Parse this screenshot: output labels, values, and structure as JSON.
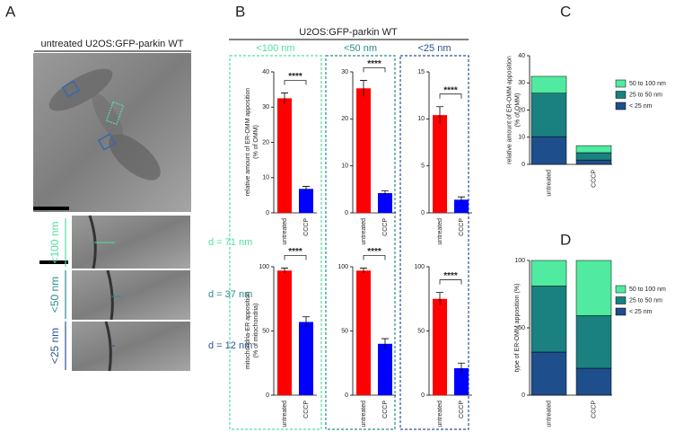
{
  "panel_a": {
    "label": "A",
    "title": "untreated U2OS:GFP-parkin WT",
    "rows": [
      {
        "range": "<100 nm",
        "distance": "d = 71 nm",
        "color": "#4fe0a0"
      },
      {
        "range": "<50 nm",
        "distance": "d = 37 nm",
        "color": "#2a8a8e"
      },
      {
        "range": "<25 nm",
        "distance": "d = 12 nm",
        "color": "#2a5490"
      }
    ]
  },
  "panel_b": {
    "label": "B",
    "title": "U2OS:GFP-parkin WT",
    "columns": [
      "<100 nm",
      "<50 nm",
      "<25 nm"
    ],
    "column_colors": [
      "#4fe0a0",
      "#2a8a8e",
      "#2a5490"
    ],
    "row_labels": [
      [
        "relative amount of ER-OMM apposition",
        "(% of OMM)"
      ],
      [
        "mitochondria-ER apposition",
        "(% of mitochondria)"
      ]
    ]
  },
  "panel_c": {
    "label": "C",
    "ylabel": [
      "relative amount of ER-OMM apposition",
      "(% of OMM)"
    ]
  },
  "panel_d": {
    "label": "D",
    "ylabel": [
      "type of ER-OMM apposition (%)"
    ]
  },
  "chart_data": [
    {
      "type": "bar",
      "categories": [
        "untreated",
        "CCCP"
      ],
      "values": [
        32.5,
        6.8
      ],
      "errors": [
        1.5,
        0.7
      ],
      "colors": [
        "#ff0000",
        "#0000ff"
      ],
      "annotation": "****",
      "ylim": [
        0,
        40
      ],
      "yticks": [
        0,
        10,
        20,
        30,
        40
      ]
    },
    {
      "type": "bar",
      "categories": [
        "untreated",
        "CCCP"
      ],
      "values": [
        26.5,
        4.2
      ],
      "errors": [
        1.7,
        0.5
      ],
      "colors": [
        "#ff0000",
        "#0000ff"
      ],
      "annotation": "****",
      "ylim": [
        0,
        30
      ],
      "yticks": [
        0,
        10,
        20,
        30
      ]
    },
    {
      "type": "bar",
      "categories": [
        "untreated",
        "CCCP"
      ],
      "values": [
        10.4,
        1.4
      ],
      "errors": [
        0.9,
        0.3
      ],
      "colors": [
        "#ff0000",
        "#0000ff"
      ],
      "annotation": "****",
      "ylim": [
        0,
        15
      ],
      "yticks": [
        0,
        5,
        10,
        15
      ]
    },
    {
      "type": "bar",
      "categories": [
        "untreated",
        "CCCP"
      ],
      "values": [
        97,
        57
      ],
      "errors": [
        2,
        4
      ],
      "colors": [
        "#ff0000",
        "#0000ff"
      ],
      "annotation": "****",
      "ylim": [
        0,
        100
      ],
      "yticks": [
        0,
        50,
        100
      ]
    },
    {
      "type": "bar",
      "categories": [
        "untreated",
        "CCCP"
      ],
      "values": [
        97,
        40
      ],
      "errors": [
        2,
        4
      ],
      "colors": [
        "#ff0000",
        "#0000ff"
      ],
      "annotation": "****",
      "ylim": [
        0,
        100
      ],
      "yticks": [
        0,
        50,
        100
      ]
    },
    {
      "type": "bar",
      "categories": [
        "untreated",
        "CCCP"
      ],
      "values": [
        75,
        21
      ],
      "errors": [
        5,
        4
      ],
      "colors": [
        "#ff0000",
        "#0000ff"
      ],
      "annotation": "****",
      "ylim": [
        0,
        100
      ],
      "yticks": [
        0,
        50,
        100
      ]
    },
    {
      "type": "stacked_bar",
      "categories": [
        "untreated",
        "CCCP"
      ],
      "series": [
        {
          "name": "< 25 nm",
          "color": "#1f4e8c",
          "values": [
            10.2,
            1.6
          ]
        },
        {
          "name": "25 to 50 nm",
          "color": "#1a8080",
          "values": [
            16,
            2.7
          ]
        },
        {
          "name": "50 to 100 nm",
          "color": "#50eba0",
          "values": [
            6.2,
            2.6
          ]
        }
      ],
      "ylim": [
        0,
        40
      ],
      "yticks": [
        0,
        10,
        20,
        30,
        40
      ]
    },
    {
      "type": "stacked_bar",
      "categories": [
        "untreated",
        "CCCP"
      ],
      "series": [
        {
          "name": "< 25 nm",
          "color": "#1f4e8c",
          "values": [
            32,
            20
          ]
        },
        {
          "name": "25 to 50 nm",
          "color": "#1a8080",
          "values": [
            49,
            39
          ]
        },
        {
          "name": "50 to 100 nm",
          "color": "#50eba0",
          "values": [
            19,
            41
          ]
        }
      ],
      "ylim": [
        0,
        100
      ],
      "yticks": [
        0,
        50,
        100
      ]
    }
  ]
}
